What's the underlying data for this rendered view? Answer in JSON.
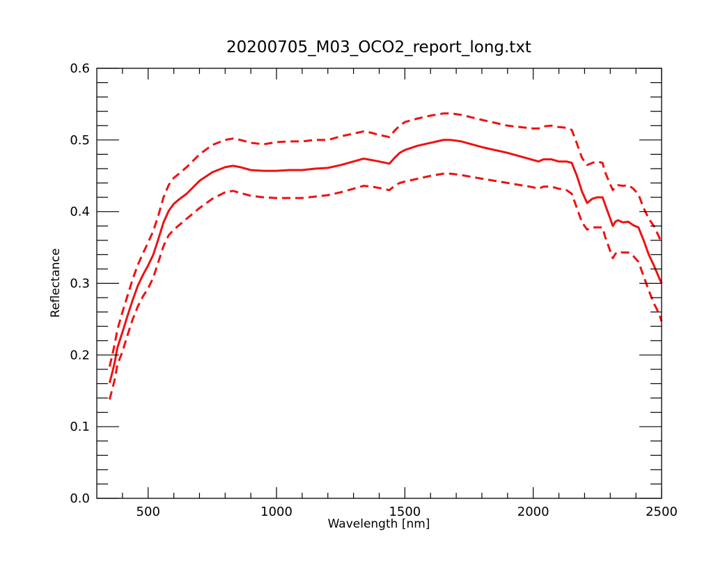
{
  "chart_data": {
    "type": "line",
    "title": "20200705_M03_OCO2_report_long.txt",
    "xlabel": "Wavelength [nm]",
    "ylabel": "Reflectance",
    "xlim": [
      300,
      2500
    ],
    "ylim": [
      0.0,
      0.6
    ],
    "xticks": [
      500,
      1000,
      1500,
      2000,
      2500
    ],
    "xtick_labels": [
      "500",
      "1000",
      "1500",
      "2000",
      "2500"
    ],
    "yticks": [
      0.0,
      0.1,
      0.2,
      0.3,
      0.4,
      0.5,
      0.6
    ],
    "ytick_labels": [
      "0.0",
      "0.1",
      "0.2",
      "0.3",
      "0.4",
      "0.5",
      "0.6"
    ],
    "grid": false,
    "series": [
      {
        "style": "solid",
        "color": "#ee1111",
        "points": [
          [
            350,
            0.161
          ],
          [
            360,
            0.175
          ],
          [
            370,
            0.19
          ],
          [
            380,
            0.21
          ],
          [
            400,
            0.232
          ],
          [
            420,
            0.255
          ],
          [
            440,
            0.277
          ],
          [
            460,
            0.297
          ],
          [
            480,
            0.312
          ],
          [
            500,
            0.325
          ],
          [
            520,
            0.34
          ],
          [
            540,
            0.362
          ],
          [
            560,
            0.385
          ],
          [
            580,
            0.401
          ],
          [
            600,
            0.411
          ],
          [
            620,
            0.417
          ],
          [
            650,
            0.425
          ],
          [
            700,
            0.443
          ],
          [
            750,
            0.455
          ],
          [
            800,
            0.462
          ],
          [
            830,
            0.464
          ],
          [
            860,
            0.462
          ],
          [
            900,
            0.458
          ],
          [
            950,
            0.457
          ],
          [
            1000,
            0.457
          ],
          [
            1050,
            0.458
          ],
          [
            1100,
            0.458
          ],
          [
            1150,
            0.46
          ],
          [
            1200,
            0.461
          ],
          [
            1250,
            0.465
          ],
          [
            1300,
            0.47
          ],
          [
            1340,
            0.474
          ],
          [
            1370,
            0.472
          ],
          [
            1400,
            0.47
          ],
          [
            1440,
            0.467
          ],
          [
            1460,
            0.475
          ],
          [
            1480,
            0.482
          ],
          [
            1500,
            0.486
          ],
          [
            1550,
            0.492
          ],
          [
            1600,
            0.496
          ],
          [
            1650,
            0.5
          ],
          [
            1680,
            0.5
          ],
          [
            1720,
            0.498
          ],
          [
            1800,
            0.49
          ],
          [
            1900,
            0.482
          ],
          [
            2000,
            0.472
          ],
          [
            2020,
            0.47
          ],
          [
            2040,
            0.473
          ],
          [
            2070,
            0.473
          ],
          [
            2100,
            0.47
          ],
          [
            2130,
            0.47
          ],
          [
            2150,
            0.468
          ],
          [
            2170,
            0.45
          ],
          [
            2190,
            0.428
          ],
          [
            2210,
            0.412
          ],
          [
            2230,
            0.418
          ],
          [
            2250,
            0.42
          ],
          [
            2270,
            0.42
          ],
          [
            2280,
            0.41
          ],
          [
            2300,
            0.39
          ],
          [
            2310,
            0.38
          ],
          [
            2320,
            0.386
          ],
          [
            2330,
            0.388
          ],
          [
            2350,
            0.385
          ],
          [
            2370,
            0.386
          ],
          [
            2390,
            0.381
          ],
          [
            2410,
            0.378
          ],
          [
            2430,
            0.36
          ],
          [
            2450,
            0.34
          ],
          [
            2470,
            0.325
          ],
          [
            2490,
            0.308
          ],
          [
            2500,
            0.3
          ]
        ]
      },
      {
        "style": "dashed",
        "color": "#ee1111",
        "points": [
          [
            350,
            0.184
          ],
          [
            360,
            0.199
          ],
          [
            370,
            0.216
          ],
          [
            380,
            0.235
          ],
          [
            400,
            0.26
          ],
          [
            420,
            0.283
          ],
          [
            440,
            0.306
          ],
          [
            460,
            0.326
          ],
          [
            480,
            0.342
          ],
          [
            500,
            0.357
          ],
          [
            520,
            0.373
          ],
          [
            540,
            0.395
          ],
          [
            560,
            0.42
          ],
          [
            580,
            0.437
          ],
          [
            600,
            0.447
          ],
          [
            620,
            0.453
          ],
          [
            650,
            0.462
          ],
          [
            700,
            0.48
          ],
          [
            750,
            0.493
          ],
          [
            800,
            0.5
          ],
          [
            830,
            0.502
          ],
          [
            860,
            0.5
          ],
          [
            900,
            0.496
          ],
          [
            950,
            0.494
          ],
          [
            1000,
            0.497
          ],
          [
            1050,
            0.498
          ],
          [
            1100,
            0.498
          ],
          [
            1150,
            0.5
          ],
          [
            1200,
            0.5
          ],
          [
            1250,
            0.505
          ],
          [
            1300,
            0.509
          ],
          [
            1340,
            0.512
          ],
          [
            1370,
            0.51
          ],
          [
            1400,
            0.507
          ],
          [
            1440,
            0.504
          ],
          [
            1460,
            0.513
          ],
          [
            1480,
            0.52
          ],
          [
            1500,
            0.525
          ],
          [
            1550,
            0.53
          ],
          [
            1600,
            0.534
          ],
          [
            1650,
            0.537
          ],
          [
            1680,
            0.537
          ],
          [
            1720,
            0.535
          ],
          [
            1800,
            0.528
          ],
          [
            1900,
            0.52
          ],
          [
            2000,
            0.516
          ],
          [
            2020,
            0.516
          ],
          [
            2040,
            0.519
          ],
          [
            2070,
            0.52
          ],
          [
            2100,
            0.518
          ],
          [
            2130,
            0.517
          ],
          [
            2150,
            0.514
          ],
          [
            2170,
            0.495
          ],
          [
            2190,
            0.475
          ],
          [
            2210,
            0.465
          ],
          [
            2230,
            0.468
          ],
          [
            2250,
            0.47
          ],
          [
            2270,
            0.468
          ],
          [
            2280,
            0.455
          ],
          [
            2300,
            0.438
          ],
          [
            2310,
            0.43
          ],
          [
            2320,
            0.435
          ],
          [
            2330,
            0.437
          ],
          [
            2350,
            0.436
          ],
          [
            2370,
            0.437
          ],
          [
            2390,
            0.432
          ],
          [
            2410,
            0.424
          ],
          [
            2430,
            0.405
          ],
          [
            2450,
            0.39
          ],
          [
            2470,
            0.38
          ],
          [
            2490,
            0.365
          ],
          [
            2500,
            0.355
          ]
        ]
      },
      {
        "style": "dashed",
        "color": "#ee1111",
        "points": [
          [
            350,
            0.138
          ],
          [
            360,
            0.152
          ],
          [
            370,
            0.166
          ],
          [
            380,
            0.186
          ],
          [
            400,
            0.205
          ],
          [
            420,
            0.228
          ],
          [
            440,
            0.25
          ],
          [
            460,
            0.268
          ],
          [
            480,
            0.282
          ],
          [
            500,
            0.293
          ],
          [
            520,
            0.308
          ],
          [
            540,
            0.33
          ],
          [
            560,
            0.352
          ],
          [
            580,
            0.367
          ],
          [
            600,
            0.375
          ],
          [
            620,
            0.381
          ],
          [
            650,
            0.39
          ],
          [
            700,
            0.405
          ],
          [
            750,
            0.418
          ],
          [
            800,
            0.427
          ],
          [
            830,
            0.429
          ],
          [
            860,
            0.426
          ],
          [
            900,
            0.422
          ],
          [
            950,
            0.42
          ],
          [
            1000,
            0.419
          ],
          [
            1050,
            0.419
          ],
          [
            1100,
            0.419
          ],
          [
            1150,
            0.421
          ],
          [
            1200,
            0.423
          ],
          [
            1250,
            0.427
          ],
          [
            1300,
            0.432
          ],
          [
            1340,
            0.436
          ],
          [
            1370,
            0.435
          ],
          [
            1400,
            0.433
          ],
          [
            1440,
            0.43
          ],
          [
            1460,
            0.436
          ],
          [
            1480,
            0.44
          ],
          [
            1500,
            0.442
          ],
          [
            1550,
            0.446
          ],
          [
            1600,
            0.45
          ],
          [
            1650,
            0.453
          ],
          [
            1680,
            0.453
          ],
          [
            1720,
            0.451
          ],
          [
            1800,
            0.446
          ],
          [
            1900,
            0.44
          ],
          [
            2000,
            0.434
          ],
          [
            2020,
            0.432
          ],
          [
            2040,
            0.435
          ],
          [
            2070,
            0.435
          ],
          [
            2100,
            0.432
          ],
          [
            2130,
            0.43
          ],
          [
            2150,
            0.425
          ],
          [
            2170,
            0.405
          ],
          [
            2190,
            0.385
          ],
          [
            2210,
            0.375
          ],
          [
            2230,
            0.378
          ],
          [
            2250,
            0.378
          ],
          [
            2270,
            0.378
          ],
          [
            2280,
            0.365
          ],
          [
            2300,
            0.345
          ],
          [
            2310,
            0.335
          ],
          [
            2320,
            0.341
          ],
          [
            2330,
            0.344
          ],
          [
            2350,
            0.343
          ],
          [
            2370,
            0.343
          ],
          [
            2390,
            0.338
          ],
          [
            2410,
            0.33
          ],
          [
            2430,
            0.31
          ],
          [
            2450,
            0.29
          ],
          [
            2470,
            0.272
          ],
          [
            2490,
            0.258
          ],
          [
            2500,
            0.247
          ]
        ]
      }
    ]
  }
}
